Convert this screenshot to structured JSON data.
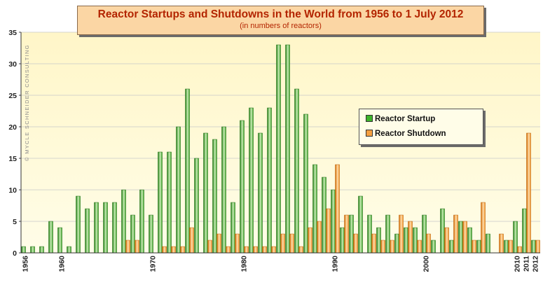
{
  "title": "Reactor Startups and Shutdowns in the World from 1956 to 1 July 2012",
  "subtitle": "(in numbers of reactors)",
  "watermark": "© MYCLE SCHNEIDER CONSULTING",
  "colors": {
    "startup": "#2e9a1c",
    "startup_light": "#cdeeb8",
    "shutdown": "#f08a1a",
    "shutdown_light": "#ffe0b0",
    "title": "#b32400"
  },
  "chart_data": {
    "type": "bar",
    "title": "Reactor Startups and Shutdowns in the World from 1956 to 1 July 2012",
    "subtitle": "(in numbers of reactors)",
    "xlabel": "",
    "ylabel": "",
    "ylim": [
      0,
      35
    ],
    "yticks": [
      0,
      5,
      10,
      15,
      20,
      25,
      30,
      35
    ],
    "xtick_labels": [
      "1956",
      "1960",
      "1970",
      "1980",
      "1990",
      "2000",
      "2010",
      "2011",
      "2012"
    ],
    "grid": true,
    "legend_position": "right",
    "categories": [
      1956,
      1957,
      1958,
      1959,
      1960,
      1961,
      1962,
      1963,
      1964,
      1965,
      1966,
      1967,
      1968,
      1969,
      1970,
      1971,
      1972,
      1973,
      1974,
      1975,
      1976,
      1977,
      1978,
      1979,
      1980,
      1981,
      1982,
      1983,
      1984,
      1985,
      1986,
      1987,
      1988,
      1989,
      1990,
      1991,
      1992,
      1993,
      1994,
      1995,
      1996,
      1997,
      1998,
      1999,
      2000,
      2001,
      2002,
      2003,
      2004,
      2005,
      2006,
      2007,
      2008,
      2009,
      2010,
      2011,
      2012
    ],
    "series": [
      {
        "name": "Reactor Startup",
        "values": [
          1,
          1,
          1,
          5,
          4,
          1,
          9,
          7,
          8,
          8,
          8,
          10,
          6,
          10,
          6,
          16,
          16,
          20,
          26,
          15,
          19,
          18,
          20,
          8,
          21,
          23,
          19,
          23,
          33,
          33,
          26,
          22,
          14,
          12,
          10,
          4,
          6,
          9,
          6,
          4,
          6,
          3,
          4,
          4,
          6,
          2,
          7,
          2,
          5,
          4,
          2,
          3,
          0,
          2,
          5,
          7,
          2
        ]
      },
      {
        "name": "Reactor Shutdown",
        "values": [
          0,
          0,
          0,
          0,
          0,
          0,
          0,
          0,
          0,
          0,
          0,
          2,
          2,
          0,
          0,
          1,
          1,
          1,
          4,
          0,
          2,
          3,
          1,
          3,
          1,
          1,
          1,
          1,
          3,
          3,
          1,
          4,
          5,
          7,
          14,
          6,
          3,
          0,
          3,
          2,
          2,
          6,
          5,
          2,
          3,
          0,
          4,
          6,
          5,
          2,
          8,
          0,
          3,
          2,
          1,
          19,
          2
        ]
      }
    ]
  }
}
